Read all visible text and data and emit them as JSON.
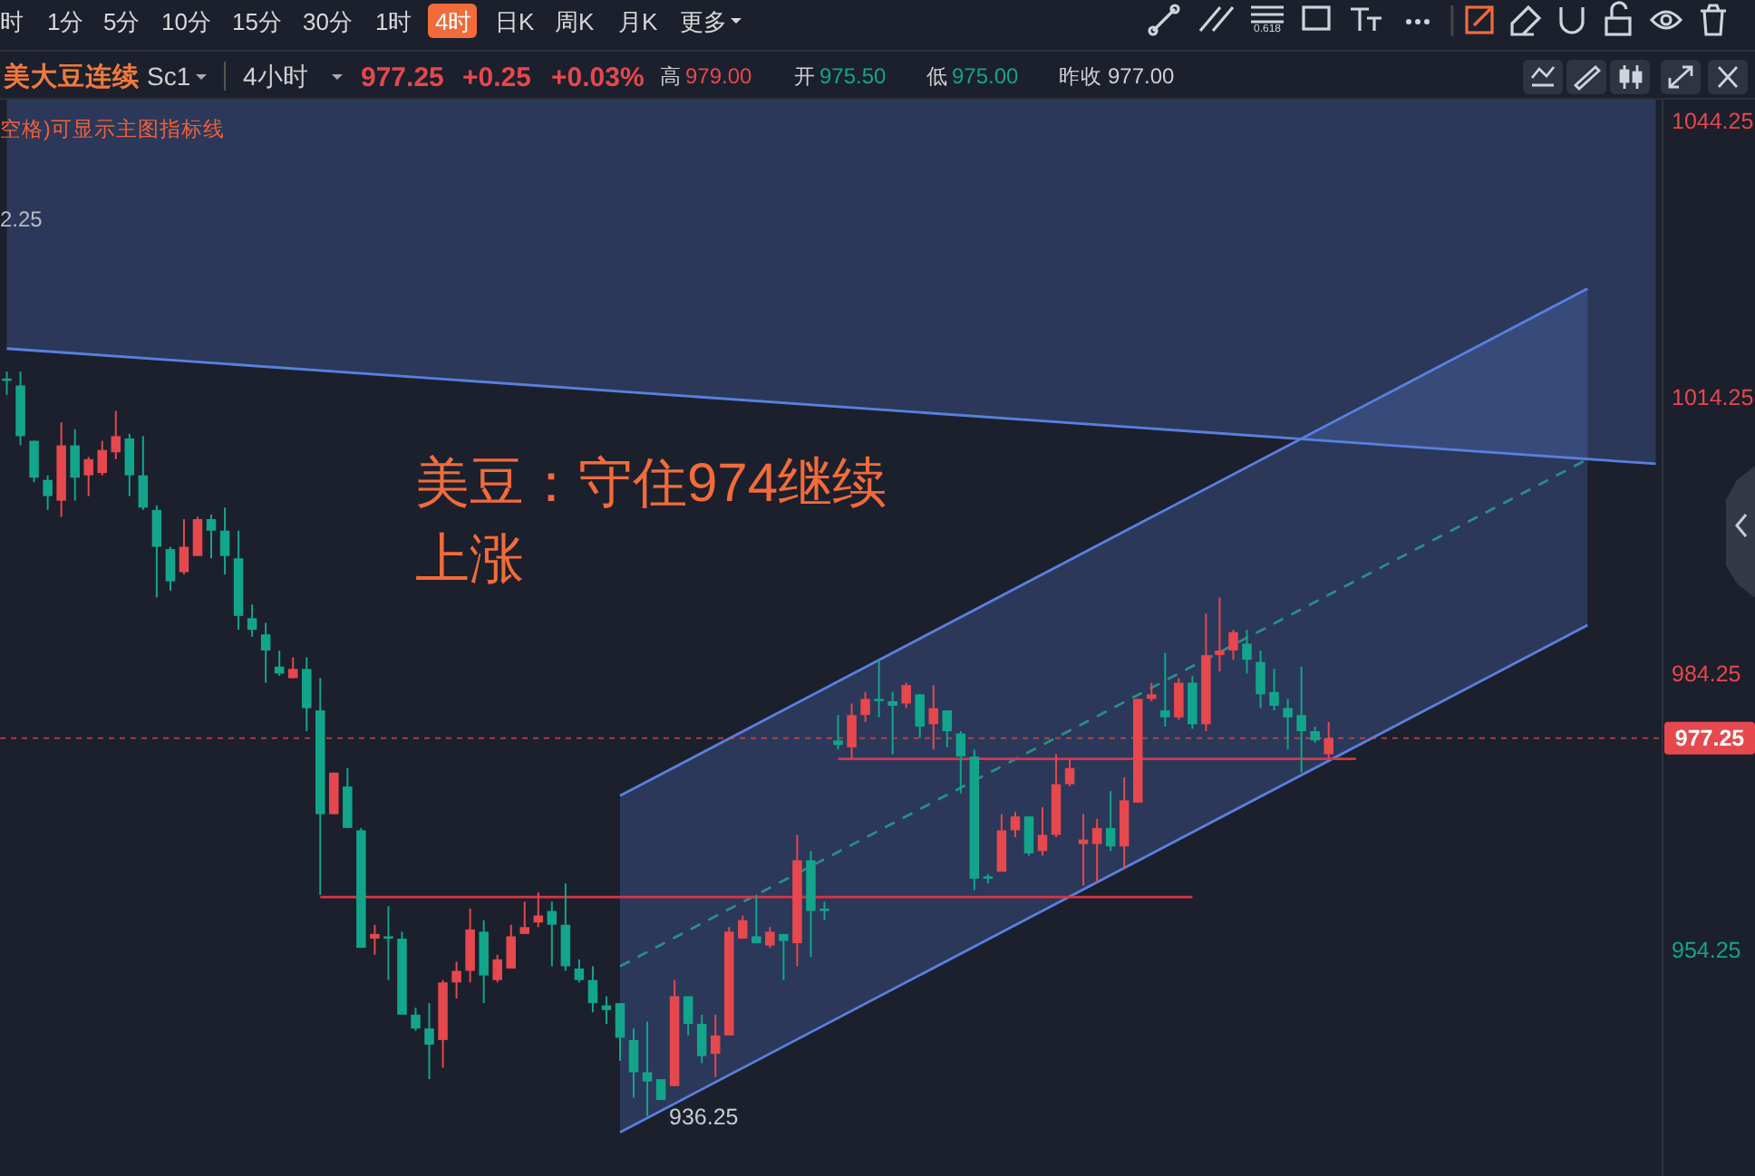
{
  "chart_data": {
    "type": "candlestick",
    "title": "美大豆连续",
    "categories": [
      null,
      null,
      null,
      null,
      null,
      null,
      null,
      null,
      null,
      null,
      null,
      null,
      null,
      null,
      null,
      null,
      null,
      null,
      null,
      null,
      null,
      null,
      null,
      null,
      null,
      null,
      null,
      null,
      null,
      null,
      null,
      null,
      null,
      null,
      null,
      null,
      null,
      null,
      null,
      null,
      null,
      null,
      null,
      null,
      null,
      null,
      null,
      null,
      null,
      null,
      null,
      null,
      null,
      null,
      null,
      null,
      null,
      null,
      null,
      null,
      null,
      null,
      null,
      null,
      null,
      null,
      null,
      null,
      null,
      null,
      null,
      null,
      null,
      null,
      null,
      null,
      null,
      null,
      null,
      null,
      null,
      null,
      null,
      null,
      null,
      null,
      null,
      null,
      null,
      null,
      null,
      null,
      null,
      null,
      null,
      null,
      null,
      null,
      null,
      null,
      null,
      null,
      null,
      null,
      null,
      null,
      null,
      null,
      null,
      null,
      null,
      null,
      null,
      null,
      null,
      null,
      null,
      null,
      null,
      null,
      null,
      null
    ],
    "ohlc": [
      [
        1016.25,
        1017,
        1014.5,
        1016
      ],
      [
        1015.5,
        1017,
        1009,
        1010
      ],
      [
        1009.5,
        1009.5,
        1005,
        1005.5
      ],
      [
        1005.25,
        1005.75,
        1002,
        1003.5
      ],
      [
        1003,
        1011.5,
        1001.25,
        1009
      ],
      [
        1009,
        1010.75,
        1003,
        1005.5
      ],
      [
        1005.75,
        1007.75,
        1003.5,
        1007.5
      ],
      [
        1006,
        1009.5,
        1005.75,
        1008.5
      ],
      [
        1008.25,
        1012.75,
        1007.5,
        1010
      ],
      [
        1009.75,
        1010.25,
        1003.5,
        1005.75
      ],
      [
        1005.75,
        1010,
        1002,
        1002.25
      ],
      [
        1002,
        1002.5,
        992.5,
        998
      ],
      [
        997.75,
        998,
        993.25,
        994.25
      ],
      [
        995.25,
        1001,
        995,
        998
      ],
      [
        997,
        1001.25,
        997,
        1001
      ],
      [
        1001,
        1001.5,
        996.75,
        999.75
      ],
      [
        999.75,
        1002.25,
        995,
        997
      ],
      [
        996.75,
        999.75,
        989,
        990.5
      ],
      [
        990.25,
        991.75,
        988.25,
        989
      ],
      [
        988.5,
        989.75,
        983.25,
        986.75
      ],
      [
        985,
        986.75,
        984,
        984.25
      ],
      [
        983.75,
        986,
        983.75,
        984.75
      ],
      [
        984.75,
        986,
        978,
        980.5
      ],
      [
        980.25,
        983.75,
        960.25,
        969
      ],
      [
        969,
        973.5,
        969,
        973.5
      ],
      [
        972,
        974,
        967.5,
        967.5
      ],
      [
        967.25,
        967.5,
        954.5,
        954.5
      ],
      [
        955.5,
        957,
        953.75,
        956
      ],
      [
        955.75,
        959,
        951,
        955.5
      ],
      [
        955.5,
        956.25,
        947.25,
        947.25
      ],
      [
        947.25,
        948,
        945.5,
        945.75
      ],
      [
        945.75,
        948.5,
        940.25,
        944
      ],
      [
        944.5,
        951,
        941.5,
        950.75
      ],
      [
        950.75,
        953,
        949,
        952
      ],
      [
        952,
        958.75,
        950.75,
        956.5
      ],
      [
        956.25,
        957.5,
        948.5,
        951.5
      ],
      [
        951,
        953.75,
        950.75,
        953.25
      ],
      [
        952.25,
        957,
        952.25,
        955.75
      ],
      [
        956,
        959.5,
        956,
        956.75
      ],
      [
        957.25,
        960.5,
        956.75,
        958
      ],
      [
        958.5,
        959.5,
        952.5,
        957
      ],
      [
        957,
        961.5,
        952,
        952.5
      ],
      [
        952.25,
        953.25,
        950.75,
        951
      ],
      [
        951,
        952.5,
        947.5,
        948.5
      ],
      [
        948.25,
        949.25,
        946.25,
        947.75
      ],
      [
        948.5,
        948.5,
        942.25,
        944.75
      ],
      [
        944.5,
        945.75,
        938.25,
        941
      ],
      [
        941,
        946.5,
        936.25,
        940
      ],
      [
        940.25,
        940.25,
        938,
        938
      ],
      [
        939.5,
        951,
        939.5,
        949.25
      ],
      [
        949.25,
        949.25,
        945,
        946.25
      ],
      [
        946.25,
        947.25,
        942,
        942.75
      ],
      [
        943,
        947.25,
        940.5,
        945
      ],
      [
        945,
        956.75,
        945,
        956.25
      ],
      [
        955.5,
        958,
        955.5,
        957.5
      ],
      [
        955.75,
        960.25,
        955,
        955
      ],
      [
        954.75,
        956.75,
        954.5,
        956.25
      ],
      [
        956,
        956,
        951,
        955.25
      ],
      [
        955,
        966.75,
        952.5,
        964
      ],
      [
        964,
        965,
        953.5,
        958.5
      ],
      [
        958.75,
        959.5,
        957.5,
        958.5
      ],
      [
        977,
        979.75,
        976,
        976.5
      ],
      [
        976.25,
        981,
        975,
        979.75
      ],
      [
        979.75,
        982.25,
        979,
        981.5
      ],
      [
        981.5,
        985.75,
        979.5,
        981.25
      ],
      [
        981.25,
        982.25,
        975.5,
        980.75
      ],
      [
        981,
        983.25,
        980.5,
        983
      ],
      [
        982,
        982,
        977.25,
        978.5
      ],
      [
        978.75,
        983,
        976,
        980.5
      ],
      [
        980.25,
        980.25,
        976.25,
        978
      ],
      [
        977.75,
        978,
        971.25,
        975.25
      ],
      [
        975.25,
        976,
        960.75,
        962
      ],
      [
        962.25,
        962.5,
        961.5,
        962
      ],
      [
        962.75,
        969,
        962.75,
        967.25
      ],
      [
        967.25,
        969.25,
        966.5,
        968.75
      ],
      [
        968.75,
        968.75,
        964.5,
        964.75
      ],
      [
        965,
        969.75,
        964.5,
        966.75
      ],
      [
        966.75,
        975.5,
        966.5,
        972.25
      ],
      [
        972.25,
        975,
        972,
        974
      ],
      [
        965.75,
        969,
        961.25,
        966.25
      ],
      [
        965.75,
        968.5,
        961.5,
        967.5
      ],
      [
        967.5,
        971.5,
        965,
        965.5
      ],
      [
        965.5,
        973,
        963,
        970.5
      ],
      [
        970.25,
        981.5,
        970.25,
        981.5
      ],
      [
        981.5,
        983.25,
        981.25,
        982
      ],
      [
        980.25,
        986.5,
        978.5,
        979.5
      ],
      [
        979.5,
        983.75,
        979.25,
        983.25
      ],
      [
        983.25,
        984,
        978.25,
        978.75
      ],
      [
        978.75,
        990.75,
        978,
        986.25
      ],
      [
        986.25,
        992.5,
        984.5,
        986.75
      ],
      [
        986.75,
        989,
        985.75,
        988.75
      ],
      [
        987.5,
        989,
        984.25,
        985.75
      ],
      [
        985.5,
        986.75,
        980.5,
        982
      ],
      [
        982.25,
        984.75,
        980.25,
        980.75
      ],
      [
        980.5,
        981.5,
        976,
        979.5
      ],
      [
        979.75,
        985,
        973.5,
        978
      ],
      [
        978,
        978.5,
        976.75,
        977
      ],
      [
        975.5,
        979,
        975,
        977.25
      ],
      null,
      null,
      null,
      null,
      null,
      null,
      null,
      null,
      null,
      null,
      null,
      null,
      null,
      null,
      null,
      null,
      null,
      null,
      null,
      null,
      null,
      null,
      null,
      null
    ],
    "colors": [
      "#12a58c",
      "#12a58c",
      "#12a58c",
      "#12a58c",
      "#e5484d",
      "#12a58c",
      "#e5484d",
      "#e5484d",
      "#e5484d",
      "#12a58c",
      "#12a58c",
      "#12a58c",
      "#12a58c",
      "#e5484d",
      "#e5484d",
      "#12a58c",
      "#12a58c",
      "#12a58c",
      "#12a58c",
      "#12a58c",
      "#12a58c",
      "#e5484d",
      "#12a58c",
      "#12a58c",
      "#e5484d",
      "#12a58c",
      "#12a58c",
      "#e5484d",
      "#12a58c",
      "#12a58c",
      "#12a58c",
      "#12a58c",
      "#e5484d",
      "#e5484d",
      "#e5484d",
      "#12a58c",
      "#e5484d",
      "#e5484d",
      "#e5484d",
      "#e5484d",
      "#12a58c",
      "#12a58c",
      "#12a58c",
      "#12a58c",
      "#12a58c",
      "#12a58c",
      "#12a58c",
      "#12a58c",
      "#12a58c",
      "#e5484d",
      "#12a58c",
      "#12a58c",
      "#e5484d",
      "#e5484d",
      "#e5484d",
      "#12a58c",
      "#e5484d",
      "#12a58c",
      "#e5484d",
      "#12a58c",
      "#12a58c",
      "#12a58c",
      "#e5484d",
      "#e5484d",
      "#12a58c",
      "#12a58c",
      "#e5484d",
      "#12a58c",
      "#e5484d",
      "#12a58c",
      "#12a58c",
      "#12a58c",
      "#12a58c",
      "#e5484d",
      "#e5484d",
      "#12a58c",
      "#e5484d",
      "#e5484d",
      "#e5484d",
      "#e5484d",
      "#e5484d",
      "#12a58c",
      "#e5484d",
      "#e5484d",
      "#e5484d",
      "#12a58c",
      "#e5484d",
      "#12a58c",
      "#e5484d",
      "#e5484d",
      "#e5484d",
      "#12a58c",
      "#12a58c",
      "#12a58c",
      "#12a58c",
      "#12a58c",
      "#12a58c",
      "#e5484d",
      null,
      null,
      null,
      null,
      null,
      null,
      null,
      null,
      null,
      null,
      null,
      null,
      null,
      null,
      null,
      null,
      null,
      null,
      null,
      null,
      null,
      null,
      null,
      null
    ],
    "series": [
      {
        "type": "line",
        "color": "#5b7fe0",
        "values": [
          1019.5,
          null,
          null,
          null,
          null,
          null,
          null,
          null,
          null,
          null,
          null,
          null,
          null,
          null,
          null,
          null,
          null,
          null,
          null,
          null,
          null,
          null,
          null,
          null,
          null,
          null,
          null,
          null,
          null,
          null,
          null,
          null,
          null,
          null,
          null,
          null,
          null,
          null,
          null,
          null,
          null,
          null,
          null,
          null,
          null,
          null,
          null,
          null,
          null,
          null,
          null,
          null,
          null,
          null,
          null,
          null,
          null,
          null,
          null,
          null,
          null,
          null,
          null,
          null,
          null,
          null,
          null,
          null,
          null,
          null,
          null,
          null,
          null,
          null,
          null,
          null,
          null,
          null,
          null,
          null,
          null,
          null,
          null,
          null,
          null,
          null,
          null,
          null,
          null,
          null,
          null,
          null,
          null,
          null,
          null,
          null,
          null,
          null,
          null,
          null,
          null,
          null,
          null,
          null,
          null,
          null,
          null,
          null,
          null,
          null,
          null,
          null,
          null,
          null,
          null,
          null,
          null,
          null,
          null,
          null,
          null,
          1007
        ]
      },
      {
        "type": "line",
        "color": "#5b7fe0",
        "values": [
          null,
          null,
          null,
          null,
          null,
          null,
          null,
          null,
          null,
          null,
          null,
          null,
          null,
          null,
          null,
          null,
          null,
          null,
          null,
          null,
          null,
          null,
          null,
          null,
          null,
          null,
          null,
          null,
          null,
          null,
          null,
          null,
          null,
          null,
          null,
          null,
          null,
          null,
          null,
          null,
          null,
          null,
          null,
          null,
          null,
          971,
          null,
          null,
          null,
          null,
          null,
          null,
          null,
          null,
          null,
          null,
          null,
          null,
          null,
          null,
          null,
          null,
          null,
          null,
          null,
          null,
          null,
          null,
          null,
          null,
          null,
          null,
          null,
          null,
          null,
          null,
          null,
          null,
          null,
          null,
          null,
          null,
          null,
          null,
          null,
          null,
          null,
          null,
          null,
          null,
          null,
          null,
          null,
          null,
          null,
          null,
          null,
          null,
          null,
          null,
          null,
          null,
          null,
          null,
          null,
          null,
          null,
          null,
          null,
          null,
          null,
          null,
          null,
          null,
          null,
          null,
          1026,
          null,
          null,
          null,
          null,
          null
        ]
      },
      {
        "type": "line",
        "color": "#5b7fe0",
        "values": [
          null,
          null,
          null,
          null,
          null,
          null,
          null,
          null,
          null,
          null,
          null,
          null,
          null,
          null,
          null,
          null,
          null,
          null,
          null,
          null,
          null,
          null,
          null,
          null,
          null,
          null,
          null,
          null,
          null,
          null,
          null,
          null,
          null,
          null,
          null,
          null,
          null,
          null,
          null,
          null,
          null,
          null,
          null,
          null,
          null,
          934.5,
          null,
          null,
          null,
          null,
          null,
          null,
          null,
          null,
          null,
          null,
          null,
          null,
          null,
          null,
          null,
          null,
          null,
          null,
          null,
          null,
          null,
          null,
          null,
          null,
          null,
          null,
          null,
          null,
          null,
          null,
          null,
          null,
          null,
          null,
          null,
          null,
          null,
          null,
          null,
          null,
          null,
          null,
          null,
          null,
          null,
          null,
          null,
          null,
          null,
          null,
          null,
          null,
          null,
          null,
          null,
          null,
          null,
          null,
          null,
          null,
          null,
          null,
          null,
          null,
          null,
          null,
          null,
          null,
          null,
          null,
          989.5,
          null,
          null,
          null,
          null,
          null
        ]
      },
      {
        "type": "line",
        "color": "#2b8c8c",
        "line_style": "dashed",
        "values": [
          null,
          null,
          null,
          null,
          null,
          null,
          null,
          null,
          null,
          null,
          null,
          null,
          null,
          null,
          null,
          null,
          null,
          null,
          null,
          null,
          null,
          null,
          null,
          null,
          null,
          null,
          null,
          null,
          null,
          null,
          null,
          null,
          null,
          null,
          null,
          null,
          null,
          null,
          null,
          null,
          null,
          null,
          null,
          null,
          null,
          952.5,
          null,
          null,
          null,
          null,
          null,
          null,
          null,
          null,
          null,
          null,
          null,
          null,
          null,
          null,
          null,
          null,
          null,
          null,
          null,
          null,
          null,
          null,
          null,
          null,
          null,
          null,
          null,
          null,
          null,
          null,
          null,
          null,
          null,
          null,
          null,
          null,
          null,
          null,
          null,
          null,
          null,
          null,
          null,
          null,
          null,
          null,
          null,
          null,
          null,
          null,
          null,
          null,
          null,
          null,
          null,
          null,
          null,
          null,
          null,
          null,
          null,
          null,
          null,
          null,
          null,
          null,
          null,
          null,
          null,
          null,
          1007.5,
          null,
          null,
          null,
          null,
          null
        ]
      },
      {
        "type": "line",
        "color": "#d9344a",
        "values": [
          null,
          null,
          null,
          null,
          null,
          null,
          null,
          null,
          null,
          null,
          null,
          null,
          null,
          null,
          null,
          null,
          null,
          null,
          null,
          null,
          null,
          null,
          null,
          960,
          null,
          null,
          null,
          null,
          null,
          null,
          null,
          null,
          null,
          null,
          null,
          null,
          null,
          null,
          null,
          null,
          null,
          null,
          null,
          null,
          null,
          null,
          null,
          null,
          null,
          null,
          null,
          null,
          null,
          null,
          null,
          null,
          null,
          null,
          null,
          null,
          null,
          null,
          null,
          null,
          null,
          null,
          null,
          null,
          null,
          null,
          null,
          null,
          null,
          null,
          null,
          null,
          null,
          null,
          null,
          null,
          null,
          null,
          null,
          null,
          null,
          null,
          null,
          960,
          null,
          null,
          null,
          null,
          null,
          null,
          null,
          null,
          null,
          null,
          null,
          null,
          null,
          null,
          null,
          null,
          null,
          null,
          null,
          null,
          null,
          null,
          null,
          null,
          null,
          null,
          null,
          null,
          null,
          null,
          null,
          null,
          null,
          null
        ]
      },
      {
        "type": "line",
        "color": "#d9344a",
        "values": [
          null,
          null,
          null,
          null,
          null,
          null,
          null,
          null,
          null,
          null,
          null,
          null,
          null,
          null,
          null,
          null,
          null,
          null,
          null,
          null,
          null,
          null,
          null,
          null,
          null,
          null,
          null,
          null,
          null,
          null,
          null,
          null,
          null,
          null,
          null,
          null,
          null,
          null,
          null,
          null,
          null,
          null,
          null,
          null,
          null,
          null,
          null,
          null,
          null,
          null,
          null,
          null,
          null,
          null,
          null,
          null,
          null,
          null,
          null,
          null,
          null,
          975,
          null,
          null,
          null,
          null,
          null,
          null,
          null,
          null,
          null,
          null,
          null,
          null,
          null,
          null,
          null,
          null,
          null,
          null,
          null,
          null,
          null,
          null,
          null,
          null,
          null,
          null,
          null,
          null,
          null,
          null,
          null,
          null,
          null,
          null,
          null,
          null,
          null,
          975,
          null,
          null,
          null,
          null,
          null,
          null,
          null,
          null,
          null,
          null,
          null,
          null,
          null,
          null,
          null,
          null,
          null,
          null,
          null,
          null,
          null,
          null
        ]
      }
    ],
    "ylim": [
      929.75,
      1046.5
    ],
    "yticks": [
      1044.25,
      1014.25,
      984.25,
      954.25
    ],
    "ref_lines": [
      {
        "axis": "y",
        "value": 977.25,
        "label": "977.25",
        "color": "#e5484d",
        "line_style": "dashed"
      }
    ],
    "annotations": [
      "时",
      "1分",
      "5分",
      "10分",
      "15分",
      "30分",
      "1时",
      "4时",
      "日K",
      "周K",
      "月K",
      "更多",
      "0.618",
      "Sc1",
      "4小时",
      "977.25",
      "+0.25",
      "+0.03%",
      "高",
      "979.00",
      "开",
      "975.50",
      "低",
      "975.00",
      "昨收",
      "977.00",
      "空格)可显示主图指标线",
      "2.25",
      "美豆：守住974继续上涨",
      "936.25"
    ]
  }
}
